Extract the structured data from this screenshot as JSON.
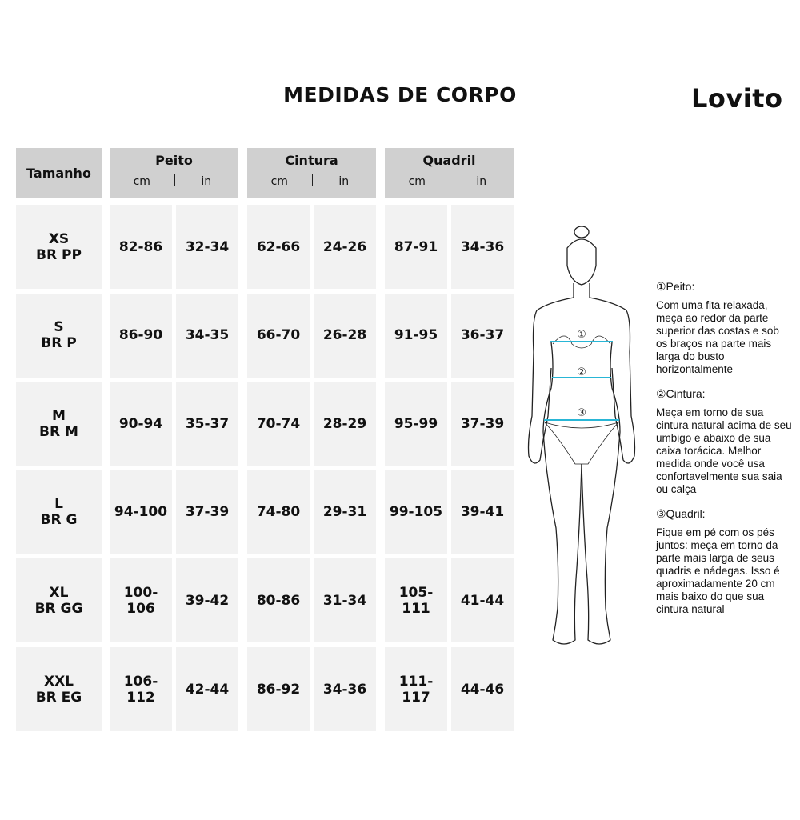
{
  "title": "MEDIDAS DE CORPO",
  "brand": "Lovito",
  "header": {
    "size": "Tamanho",
    "groups": [
      "Peito",
      "Cintura",
      "Quadril"
    ],
    "units": [
      "cm",
      "in"
    ]
  },
  "rows": [
    {
      "size": [
        "XS",
        "BR PP"
      ],
      "values": [
        "82-86",
        "32-34",
        "62-66",
        "24-26",
        "87-91",
        "34-36"
      ]
    },
    {
      "size": [
        "S",
        "BR P"
      ],
      "values": [
        "86-90",
        "34-35",
        "66-70",
        "26-28",
        "91-95",
        "36-37"
      ]
    },
    {
      "size": [
        "M",
        "BR M"
      ],
      "values": [
        "90-94",
        "35-37",
        "70-74",
        "28-29",
        "95-99",
        "37-39"
      ]
    },
    {
      "size": [
        "L",
        "BR G"
      ],
      "values": [
        "94-100",
        "37-39",
        "74-80",
        "29-31",
        "99-105",
        "39-41"
      ]
    },
    {
      "size": [
        "XL",
        "BR GG"
      ],
      "values": [
        "100-106",
        "39-42",
        "80-86",
        "31-34",
        "105-111",
        "41-44"
      ]
    },
    {
      "size": [
        "XXL",
        "BR EG"
      ],
      "values": [
        "106-112",
        "42-44",
        "86-92",
        "34-36",
        "111-117",
        "44-46"
      ]
    }
  ],
  "figure": {
    "markers": [
      "①",
      "②",
      "③"
    ],
    "line_color": "#29b6d6"
  },
  "notes": [
    {
      "title": "①Peito:",
      "text": "Com uma fita relaxada, meça ao redor da parte superior das costas e sob os braços na parte mais larga do busto horizontalmente"
    },
    {
      "title": "②Cintura:",
      "text": "Meça em torno de sua cintura natural acima de seu umbigo e abaixo de sua caixa torácica. Melhor medida onde você usa confortavelmente sua saia ou calça"
    },
    {
      "title": "③Quadril:",
      "text": "Fique em pé com os pés juntos: meça em torno da parte mais larga de seus quadris e nádegas. Isso é aproximadamente 20 cm mais baixo do que sua cintura natural"
    }
  ],
  "colors": {
    "header_bg": "#d0d0d0",
    "cell_bg": "#f2f2f2"
  }
}
